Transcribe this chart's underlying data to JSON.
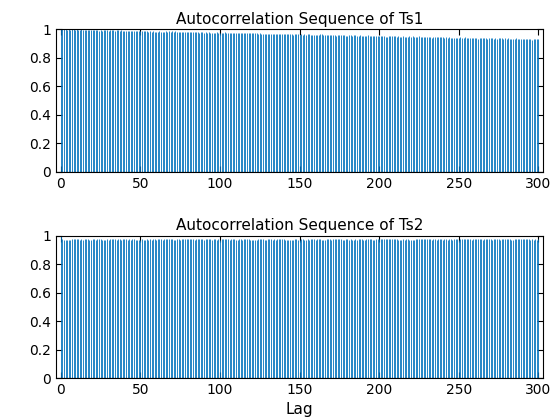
{
  "title1": "Autocorrelation Sequence of Ts1",
  "title2": "Autocorrelation Sequence of Ts2",
  "xlabel": "Lag",
  "xlim": [
    -3,
    303
  ],
  "ylim": [
    0,
    1
  ],
  "yticks": [
    0,
    0.2,
    0.4,
    0.6,
    0.8,
    1.0
  ],
  "xticks": [
    0,
    50,
    100,
    150,
    200,
    250,
    300
  ],
  "n_lags": 301,
  "stem_color": "#0072BD",
  "baseline_color": "#000000",
  "linewidth": 0.6,
  "title_fontsize": 11,
  "label_fontsize": 11,
  "tick_fontsize": 10
}
